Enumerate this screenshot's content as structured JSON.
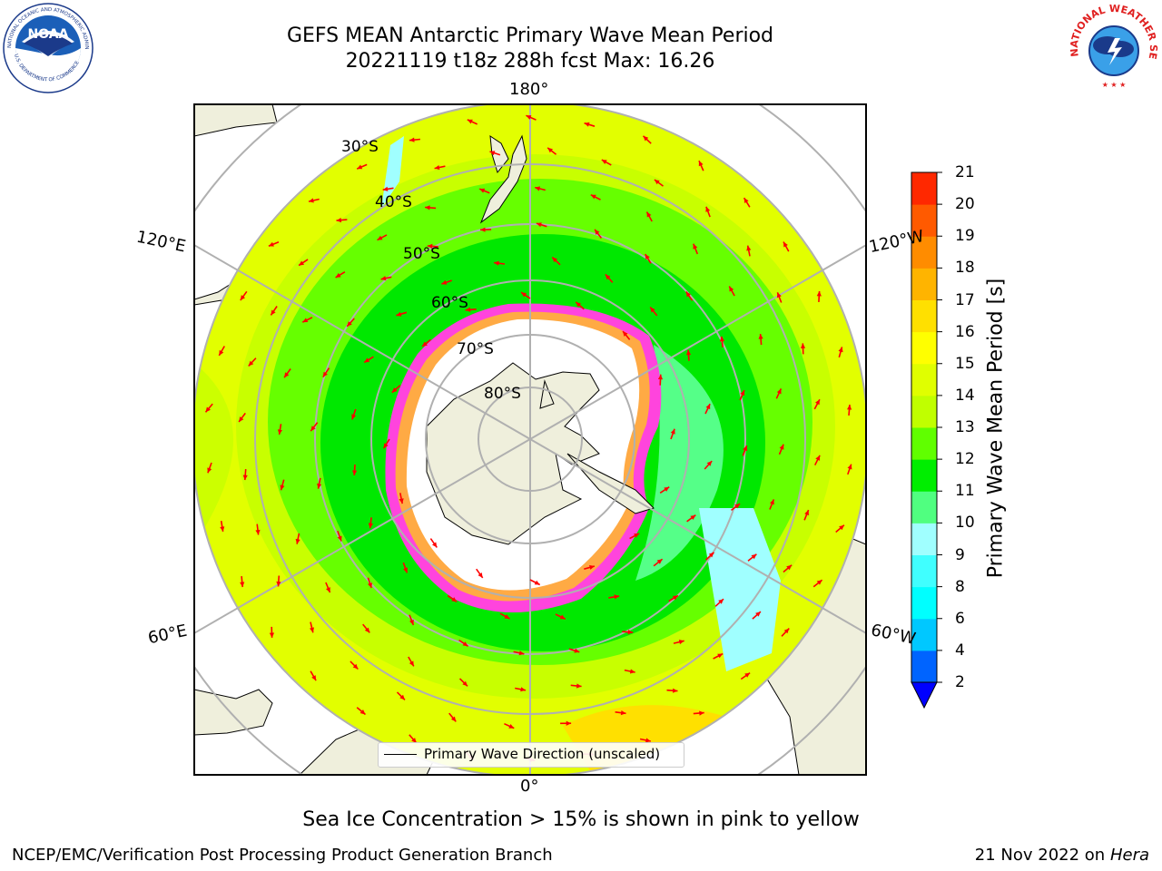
{
  "header": {
    "title_line1": "GEFS MEAN Antarctic Primary Wave Mean Period",
    "title_line2": "20221119 t18z 288h fcst   Max: 16.26"
  },
  "logos": {
    "left": {
      "icon": "noaa-logo",
      "text": "NOAA"
    },
    "right": {
      "icon": "nws-logo",
      "text": "NATIONAL WEATHER SERVICE"
    }
  },
  "map": {
    "projection": "south-polar-stereographic",
    "longitude_labels": [
      "180°",
      "120°E",
      "120°W",
      "60°E",
      "60°W",
      "0°"
    ],
    "latitude_labels": [
      "30°S",
      "40°S",
      "50°S",
      "60°S",
      "70°S",
      "80°S"
    ],
    "legend_text": "Primary Wave Direction (unscaled)",
    "colors": {
      "land": "#efefdc",
      "ice": "#ffffff",
      "grid": "#b0b0b0",
      "arrows": "#ff0000"
    }
  },
  "colorbar": {
    "label": "Primary Wave Mean Period [s]",
    "ticks": [
      "2",
      "4",
      "6",
      "8",
      "9",
      "10",
      "11",
      "12",
      "13",
      "14",
      "15",
      "16",
      "17",
      "18",
      "19",
      "20",
      "21"
    ],
    "colors": [
      "#0064ff",
      "#00c8ff",
      "#00ffff",
      "#40ffff",
      "#a0ffff",
      "#50ff80",
      "#00ee00",
      "#60ff00",
      "#c0ff00",
      "#e0ff00",
      "#ffff00",
      "#ffe000",
      "#ffb400",
      "#ff8c00",
      "#ff5a00",
      "#ff2800"
    ],
    "extend_color": "#0000ff"
  },
  "caption": "Sea Ice Concentration > 15% is shown in pink to yellow",
  "footer": {
    "left": "NCEP/EMC/Verification Post Processing Product Generation Branch",
    "right_date": "21 Nov 2022 on",
    "right_host": "Hera"
  }
}
